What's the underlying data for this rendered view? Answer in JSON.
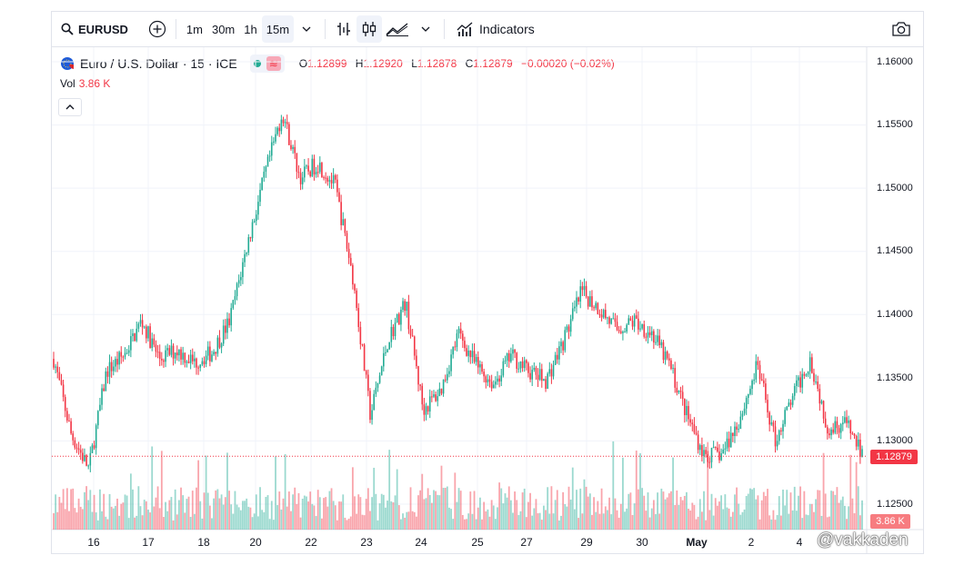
{
  "toolbar": {
    "symbol": "EURUSD",
    "intervals": [
      "1m",
      "30m",
      "1h",
      "15m"
    ],
    "active_interval": "15m",
    "indicators_label": "Indicators"
  },
  "legend": {
    "title": "Euro / U.S. Dollar · 15 · ICE",
    "o_label": "O",
    "o_value": "1.12899",
    "h_label": "H",
    "h_value": "1.12920",
    "l_label": "L",
    "l_value": "1.12878",
    "c_label": "C",
    "c_value": "1.12879",
    "change": "−0.00020 (−0.02%)",
    "vol_label": "Vol",
    "vol_value": "3.86 K"
  },
  "last_price_tag": "1.12879",
  "last_volume_tag": "3.86 K",
  "watermark": "@vakkaden",
  "colors": {
    "up": "#22ab94",
    "down": "#f23645",
    "grid": "#f0f3fa"
  },
  "chart_data": {
    "type": "candlestick",
    "y_ticks": [
      "1.16000",
      "1.15500",
      "1.15000",
      "1.14500",
      "1.14000",
      "1.13500",
      "1.13000",
      "1.12500"
    ],
    "ylim": [
      1.1235,
      1.1615
    ],
    "x_ticks": [
      "16",
      "17",
      "18",
      "20",
      "22",
      "23",
      "24",
      "25",
      "27",
      "29",
      "30",
      "May",
      "2",
      "4"
    ],
    "last_price": 1.12879,
    "last_volume": 3860,
    "price_path": [
      {
        "x": "15",
        "y": 1.1365
      },
      {
        "x": "15.5",
        "y": 1.1305
      },
      {
        "x": "16",
        "y": 1.1278
      },
      {
        "x": "16.4",
        "y": 1.1355
      },
      {
        "x": "16.8",
        "y": 1.1368
      },
      {
        "x": "17",
        "y": 1.1395
      },
      {
        "x": "17.5",
        "y": 1.1365
      },
      {
        "x": "18",
        "y": 1.1372
      },
      {
        "x": "18.5",
        "y": 1.1362
      },
      {
        "x": "19",
        "y": 1.137
      },
      {
        "x": "20",
        "y": 1.1395
      },
      {
        "x": "20.3",
        "y": 1.1455
      },
      {
        "x": "20.6",
        "y": 1.151
      },
      {
        "x": "20.9",
        "y": 1.156
      },
      {
        "x": "21.5",
        "y": 1.1508
      },
      {
        "x": "22",
        "y": 1.152
      },
      {
        "x": "22.5",
        "y": 1.1502
      },
      {
        "x": "22.9",
        "y": 1.143
      },
      {
        "x": "23",
        "y": 1.132
      },
      {
        "x": "23.2",
        "y": 1.138
      },
      {
        "x": "23.6",
        "y": 1.141
      },
      {
        "x": "24",
        "y": 1.1325
      },
      {
        "x": "24.3",
        "y": 1.134
      },
      {
        "x": "24.8",
        "y": 1.1385
      },
      {
        "x": "25",
        "y": 1.136
      },
      {
        "x": "25.5",
        "y": 1.1345
      },
      {
        "x": "26",
        "y": 1.1368
      },
      {
        "x": "27",
        "y": 1.1355
      },
      {
        "x": "27.5",
        "y": 1.1348
      },
      {
        "x": "28",
        "y": 1.138
      },
      {
        "x": "28.3",
        "y": 1.1418
      },
      {
        "x": "28.8",
        "y": 1.1405
      },
      {
        "x": "29",
        "y": 1.1388
      },
      {
        "x": "29.5",
        "y": 1.1395
      },
      {
        "x": "30",
        "y": 1.1385
      },
      {
        "x": "30.5",
        "y": 1.136
      },
      {
        "x": "May",
        "y": 1.132
      },
      {
        "x": "1.5",
        "y": 1.1288
      },
      {
        "x": "2",
        "y": 1.129
      },
      {
        "x": "2.5",
        "y": 1.1318
      },
      {
        "x": "3",
        "y": 1.136
      },
      {
        "x": "3.5",
        "y": 1.13
      },
      {
        "x": "4",
        "y": 1.1335
      },
      {
        "x": "4.5",
        "y": 1.1365
      },
      {
        "x": "4.8",
        "y": 1.131
      },
      {
        "x": "5",
        "y": 1.1315
      },
      {
        "x": "5.2",
        "y": 1.12879
      }
    ]
  }
}
